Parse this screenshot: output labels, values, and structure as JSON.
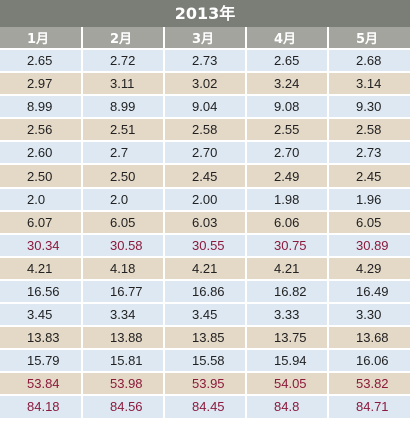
{
  "title": "2013年",
  "headers": [
    "1月",
    "2月",
    "3月",
    "4月",
    "5月"
  ],
  "rows": [
    {
      "values": [
        "2.65",
        "2.72",
        "2.73",
        "2.65",
        "2.68"
      ],
      "shade": "blue",
      "highlight": false
    },
    {
      "values": [
        "2.97",
        "3.11",
        "3.02",
        "3.24",
        "3.14"
      ],
      "shade": "tan",
      "highlight": false
    },
    {
      "values": [
        "8.99",
        "8.99",
        "9.04",
        "9.08",
        "9.30"
      ],
      "shade": "blue",
      "highlight": false
    },
    {
      "values": [
        "2.56",
        "2.51",
        "2.58",
        "2.55",
        "2.58"
      ],
      "shade": "tan",
      "highlight": false
    },
    {
      "values": [
        "2.60",
        "2.7",
        "2.70",
        "2.70",
        "2.73"
      ],
      "shade": "blue",
      "highlight": false
    },
    {
      "values": [
        "2.50",
        "2.50",
        "2.45",
        "2.49",
        "2.45"
      ],
      "shade": "tan",
      "highlight": false
    },
    {
      "values": [
        "2.0",
        "2.0",
        "2.00",
        "1.98",
        "1.96"
      ],
      "shade": "blue",
      "highlight": false
    },
    {
      "values": [
        "6.07",
        "6.05",
        "6.03",
        "6.06",
        "6.05"
      ],
      "shade": "tan",
      "highlight": false
    },
    {
      "values": [
        "30.34",
        "30.58",
        "30.55",
        "30.75",
        "30.89"
      ],
      "shade": "blue",
      "highlight": true
    },
    {
      "values": [
        "4.21",
        "4.18",
        "4.21",
        "4.21",
        "4.29"
      ],
      "shade": "tan",
      "highlight": false
    },
    {
      "values": [
        "16.56",
        "16.77",
        "16.86",
        "16.82",
        "16.49"
      ],
      "shade": "blue",
      "highlight": false
    },
    {
      "values": [
        "3.45",
        "3.34",
        "3.45",
        "3.33",
        "3.30"
      ],
      "shade": "blue",
      "highlight": false
    },
    {
      "values": [
        "13.83",
        "13.88",
        "13.85",
        "13.75",
        "13.68"
      ],
      "shade": "tan",
      "highlight": false
    },
    {
      "values": [
        "15.79",
        "15.81",
        "15.58",
        "15.94",
        "16.06"
      ],
      "shade": "blue",
      "highlight": false
    },
    {
      "values": [
        "53.84",
        "53.98",
        "53.95",
        "54.05",
        "53.82"
      ],
      "shade": "tan",
      "highlight": true
    },
    {
      "values": [
        "84.18",
        "84.56",
        "84.45",
        "84.8",
        "84.71"
      ],
      "shade": "blue",
      "highlight": true
    }
  ],
  "colors": {
    "title_bg": "#7a7e77",
    "header_bg": "#a2a49d",
    "row_blue": "#dde8f2",
    "row_tan": "#e4d8c6",
    "highlight_text": "#8b1a3c"
  }
}
